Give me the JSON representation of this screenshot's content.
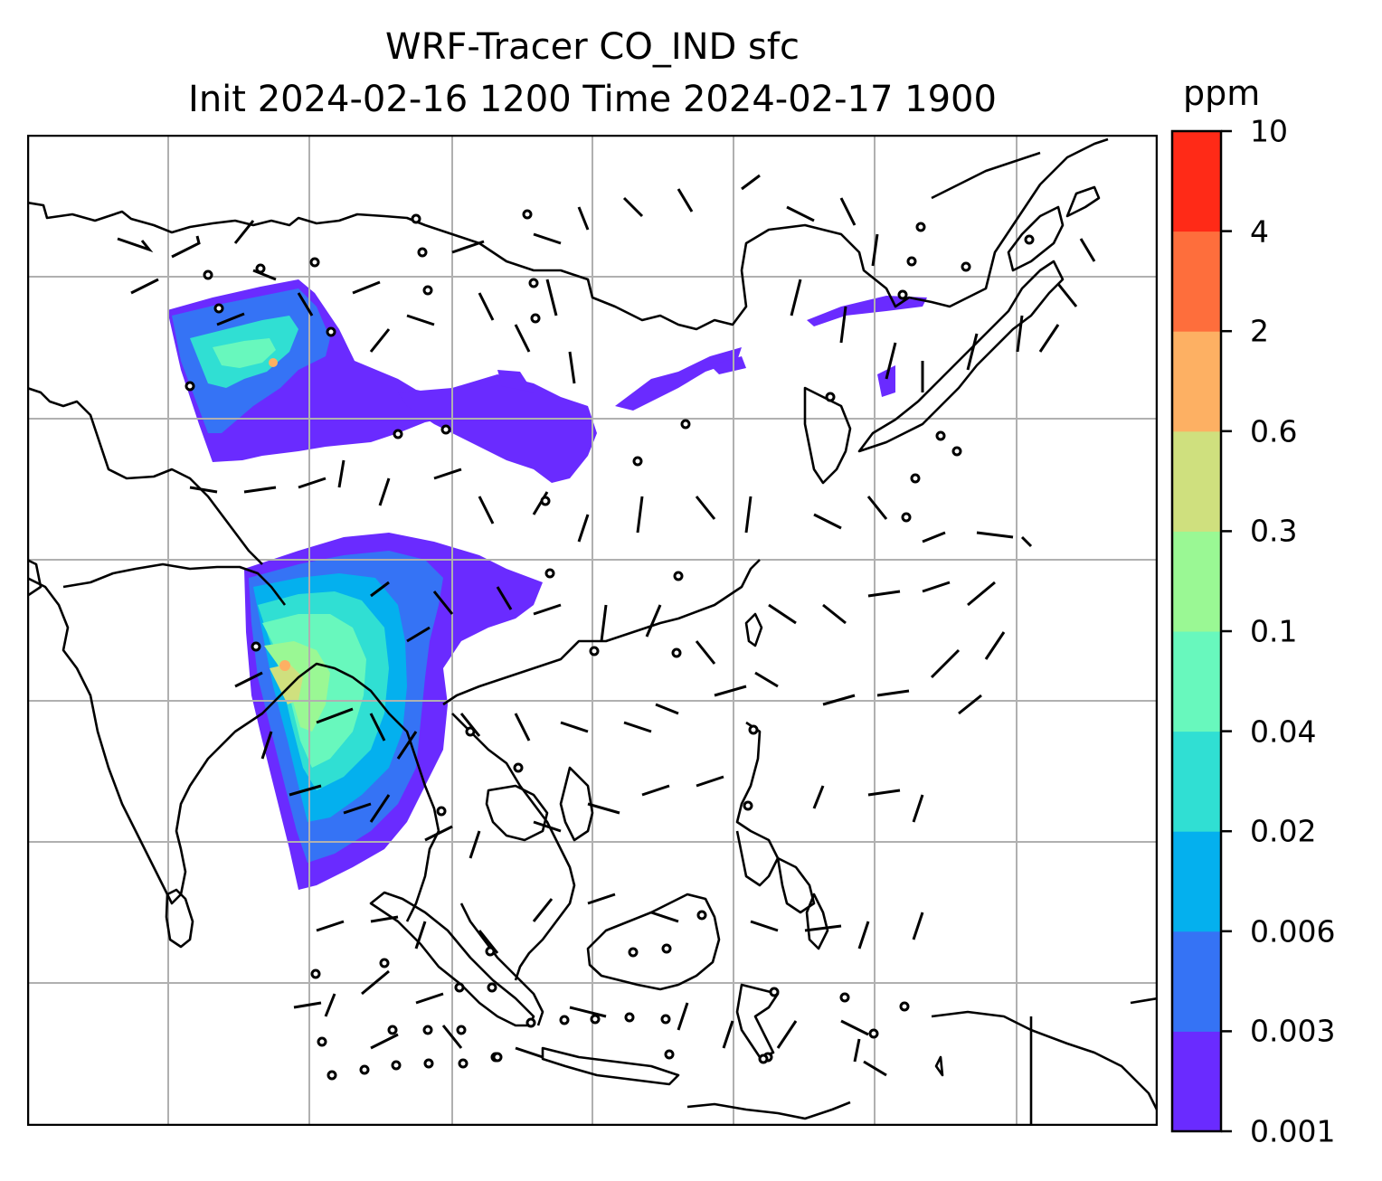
{
  "title": {
    "line1": "WRF-Tracer CO_IND sfc",
    "line2": "Init 2024-02-16 1200 Time 2024-02-17 1900"
  },
  "colorbar": {
    "unit": "ppm",
    "levels": [
      "0.001",
      "0.003",
      "0.006",
      "0.02",
      "0.04",
      "0.1",
      "0.3",
      "0.6",
      "2",
      "4",
      "10"
    ],
    "colors": [
      "#6a2bff",
      "#3573f5",
      "#04b0ee",
      "#30dfd3",
      "#68f8bd",
      "#9af894",
      "#cfe07e",
      "#fdb063",
      "#fe6e3c",
      "#ff2a17"
    ]
  },
  "map": {
    "land_outline_color": "#000000",
    "grid_color": "#b0b0b0",
    "plume_regions": [
      "northwest-china-plume",
      "sichuan-basin-plume",
      "north-china-plume",
      "bangladesh-myanmar-plume"
    ],
    "wind_barb_color": "#000000"
  }
}
